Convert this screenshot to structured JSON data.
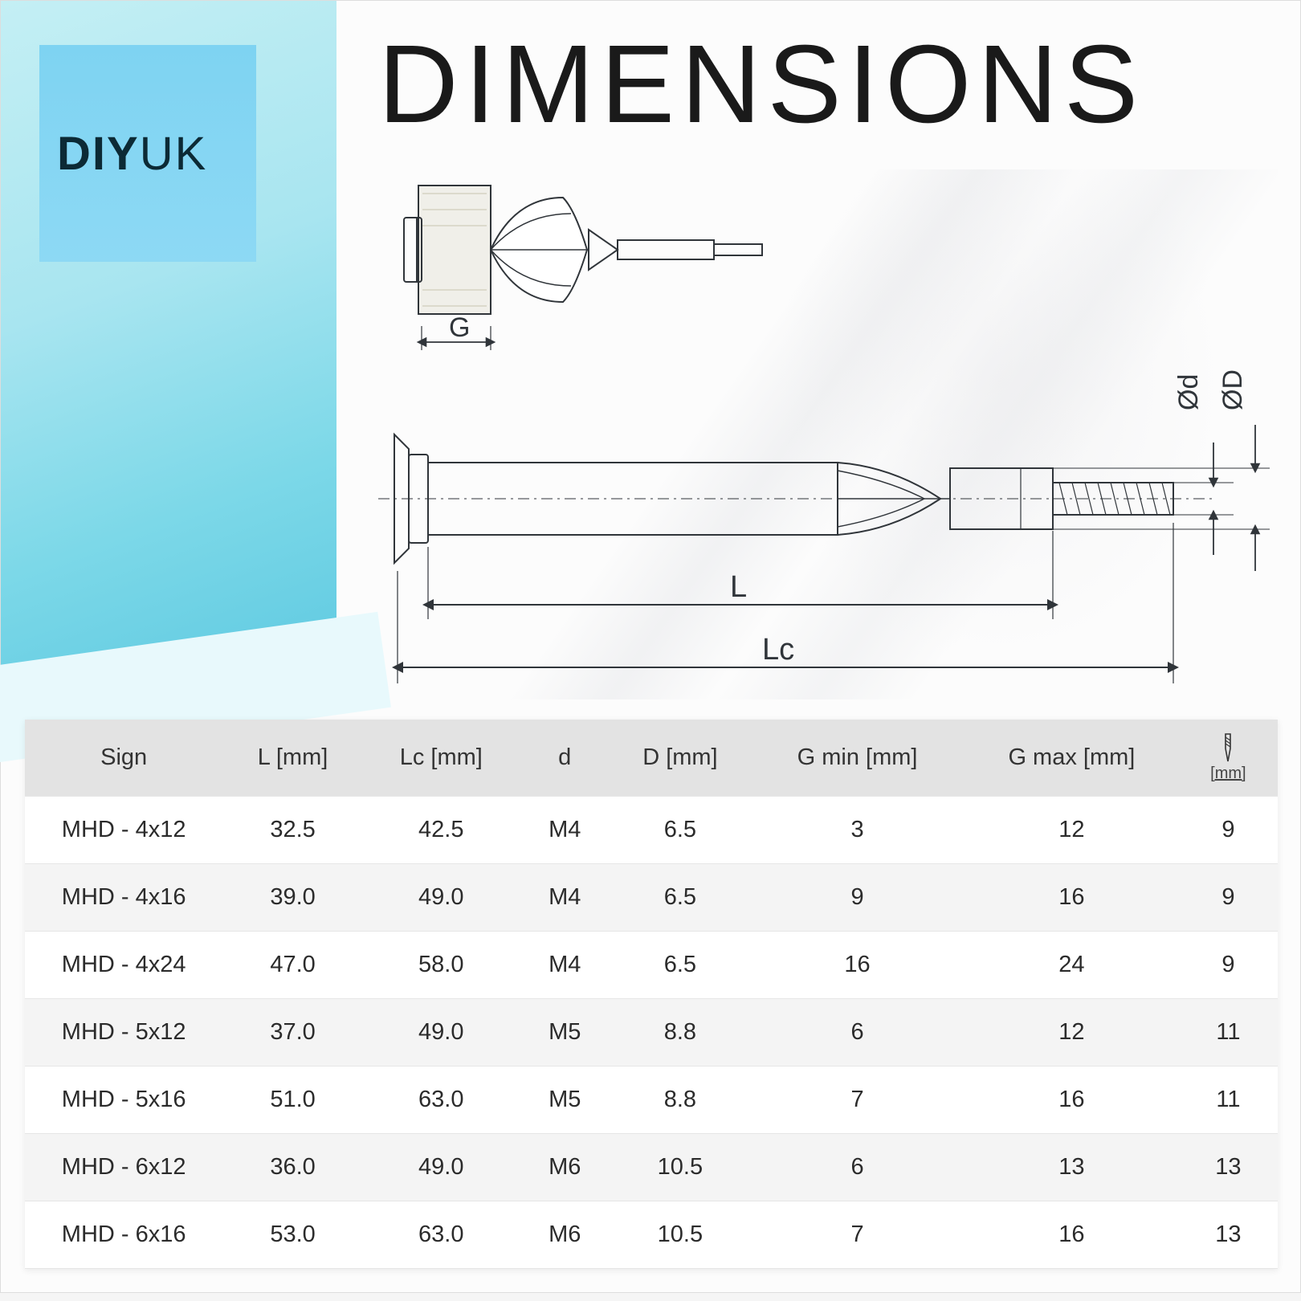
{
  "brand": {
    "part1": "DIY",
    "part2": "UK"
  },
  "title": "DIMENSIONS",
  "diagram": {
    "labels": {
      "G": "G",
      "L": "L",
      "Lc": "Lc",
      "d": "Ød",
      "D": "ØD"
    },
    "stroke": "#30353a",
    "stroke_thin": "#6b7075"
  },
  "table": {
    "columns": [
      "Sign",
      "L [mm]",
      "Lc [mm]",
      "d",
      "D [mm]",
      "G min [mm]",
      "G max [mm]"
    ],
    "drill_unit": "[mm]",
    "rows": [
      [
        "MHD - 4x12",
        "32.5",
        "42.5",
        "M4",
        "6.5",
        "3",
        "12",
        "9"
      ],
      [
        "MHD - 4x16",
        "39.0",
        "49.0",
        "M4",
        "6.5",
        "9",
        "16",
        "9"
      ],
      [
        "MHD - 4x24",
        "47.0",
        "58.0",
        "M4",
        "6.5",
        "16",
        "24",
        "9"
      ],
      [
        "MHD - 5x12",
        "37.0",
        "49.0",
        "M5",
        "8.8",
        "6",
        "12",
        "11"
      ],
      [
        "MHD - 5x16",
        "51.0",
        "63.0",
        "M5",
        "8.8",
        "7",
        "16",
        "11"
      ],
      [
        "MHD - 6x12",
        "36.0",
        "49.0",
        "M6",
        "10.5",
        "6",
        "13",
        "13"
      ],
      [
        "MHD - 6x16",
        "53.0",
        "63.0",
        "M6",
        "10.5",
        "7",
        "16",
        "13"
      ]
    ]
  },
  "colors": {
    "sidebar_top": "#c4eff4",
    "sidebar_bottom": "#5bc8e0",
    "logo_bg": "#7ed3f2",
    "header_bg": "#e3e3e3",
    "row_alt": "#f4f4f4"
  }
}
